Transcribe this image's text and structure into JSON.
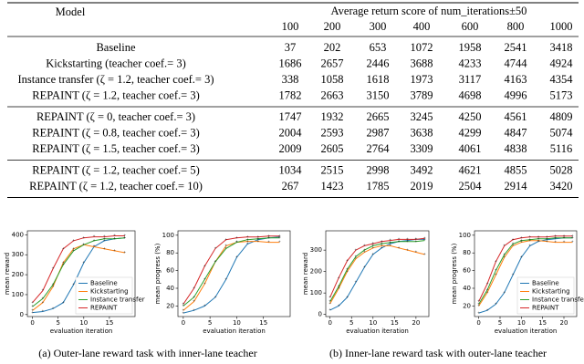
{
  "table": {
    "header": {
      "model": "Model",
      "group": "Average return score of num_iterations±50",
      "columns": [
        100,
        200,
        300,
        400,
        600,
        800,
        1000
      ]
    },
    "groups": [
      [
        {
          "model": "Baseline",
          "values": [
            37,
            202,
            653,
            1072,
            1958,
            2541,
            3418
          ]
        },
        {
          "model": "Kickstarting (teacher coef.= 3)",
          "values": [
            1686,
            2657,
            2446,
            3688,
            4233,
            4744,
            4924
          ]
        },
        {
          "model": "Instance transfer (ζ = 1.2, teacher coef.= 3)",
          "values": [
            338,
            1058,
            1618,
            1973,
            3117,
            4163,
            4354
          ]
        },
        {
          "model": "REPAINT (ζ = 1.2, teacher coef.= 3)",
          "values": [
            1782,
            2663,
            3150,
            3789,
            4698,
            4996,
            5173
          ]
        }
      ],
      [
        {
          "model": "REPAINT (ζ = 0, teacher coef.= 3)",
          "values": [
            1747,
            1932,
            2665,
            3245,
            4250,
            4561,
            4809
          ]
        },
        {
          "model": "REPAINT (ζ = 0.8, teacher coef.= 3)",
          "values": [
            2004,
            2593,
            2987,
            3638,
            4299,
            4847,
            5074
          ]
        },
        {
          "model": "REPAINT (ζ = 1.5, teacher coef.= 3)",
          "values": [
            2009,
            2605,
            2764,
            3309,
            4061,
            4838,
            5116
          ]
        }
      ],
      [
        {
          "model": "REPAINT (ζ = 1.2, teacher coef.= 5)",
          "values": [
            1034,
            2515,
            2998,
            3492,
            4621,
            4855,
            5028
          ]
        },
        {
          "model": "REPAINT (ζ = 1.2, teacher coef.= 10)",
          "values": [
            267,
            1423,
            1785,
            2019,
            2504,
            2914,
            3420
          ]
        }
      ]
    ]
  },
  "figures": [
    {
      "caption": "(a) Outer-lane reward task with inner-lane teacher",
      "charts": [
        {
          "type": "line",
          "xlabel": "evaluation iteration",
          "ylabel": "mean reward",
          "legend": "lower right",
          "x": [
            0,
            2,
            4,
            6,
            8,
            10,
            12,
            14,
            16,
            18
          ],
          "xlim": [
            -1,
            20
          ],
          "xticks": [
            0,
            5,
            10,
            15
          ],
          "ylim": [
            -10,
            420
          ],
          "yticks": [
            0,
            100,
            200,
            300,
            400
          ],
          "series": [
            {
              "name": "Baseline",
              "color": "#1f77b4",
              "values": [
                10,
                15,
                30,
                60,
                150,
                260,
                340,
                370,
                380,
                385
              ]
            },
            {
              "name": "Kickstarting",
              "color": "#ff7f0e",
              "values": [
                20,
                60,
                140,
                260,
                330,
                350,
                340,
                330,
                320,
                310
              ]
            },
            {
              "name": "Instance transfer",
              "color": "#2ca02c",
              "values": [
                40,
                80,
                150,
                250,
                320,
                350,
                370,
                380,
                380,
                385
              ]
            },
            {
              "name": "REPAINT",
              "color": "#d62728",
              "values": [
                60,
                120,
                230,
                330,
                370,
                385,
                390,
                390,
                395,
                395
              ]
            }
          ]
        },
        {
          "type": "line",
          "xlabel": "evaluation iteration",
          "ylabel": "mean progress (%)",
          "x": [
            0,
            2,
            4,
            6,
            8,
            10,
            12,
            14,
            16,
            18
          ],
          "xlim": [
            -1,
            20
          ],
          "xticks": [
            0,
            5,
            10,
            15
          ],
          "ylim": [
            8,
            105
          ],
          "yticks": [
            20,
            40,
            60,
            80,
            100
          ],
          "series": [
            {
              "name": "Baseline",
              "color": "#1f77b4",
              "values": [
                12,
                15,
                20,
                30,
                50,
                75,
                90,
                95,
                97,
                98
              ]
            },
            {
              "name": "Kickstarting",
              "color": "#ff7f0e",
              "values": [
                15,
                25,
                45,
                70,
                88,
                92,
                93,
                93,
                92,
                92
              ]
            },
            {
              "name": "Instance transfer",
              "color": "#2ca02c",
              "values": [
                20,
                30,
                50,
                70,
                85,
                92,
                95,
                96,
                97,
                97
              ]
            },
            {
              "name": "REPAINT",
              "color": "#d62728",
              "values": [
                22,
                40,
                65,
                85,
                95,
                97,
                98,
                98,
                99,
                99
              ]
            }
          ]
        }
      ]
    },
    {
      "caption": "(b) Inner-lane reward task with outer-lane teacher",
      "charts": [
        {
          "type": "line",
          "xlabel": "evaluation iteration",
          "ylabel": "mean reward",
          "x": [
            0,
            2,
            4,
            6,
            8,
            10,
            12,
            14,
            16,
            18,
            20,
            22
          ],
          "xlim": [
            -1,
            23
          ],
          "xticks": [
            0,
            5,
            10,
            15,
            20
          ],
          "ylim": [
            -10,
            390
          ],
          "yticks": [
            0,
            100,
            200,
            300
          ],
          "series": [
            {
              "name": "Baseline",
              "color": "#1f77b4",
              "values": [
                20,
                40,
                80,
                150,
                220,
                280,
                310,
                330,
                340,
                345,
                350,
                350
              ]
            },
            {
              "name": "Kickstarting",
              "color": "#ff7f0e",
              "values": [
                50,
                120,
                200,
                260,
                290,
                310,
                320,
                320,
                310,
                300,
                290,
                280
              ]
            },
            {
              "name": "Instance transfer",
              "color": "#2ca02c",
              "values": [
                60,
                130,
                210,
                270,
                300,
                320,
                330,
                335,
                340,
                340,
                340,
                345
              ]
            },
            {
              "name": "REPAINT",
              "color": "#d62728",
              "values": [
                80,
                170,
                250,
                300,
                320,
                330,
                340,
                345,
                350,
                350,
                350,
                355
              ]
            }
          ]
        },
        {
          "type": "line",
          "xlabel": "evaluation iteration",
          "ylabel": "mean progress (%)",
          "legend": "lower right",
          "x": [
            0,
            2,
            4,
            6,
            8,
            10,
            12,
            14,
            16,
            18,
            20,
            22
          ],
          "xlim": [
            -1,
            23
          ],
          "xticks": [
            0,
            5,
            10,
            15,
            20
          ],
          "ylim": [
            8,
            105
          ],
          "yticks": [
            20,
            40,
            60,
            80,
            100
          ],
          "series": [
            {
              "name": "Baseline",
              "color": "#1f77b4",
              "values": [
                12,
                15,
                22,
                35,
                55,
                75,
                88,
                93,
                95,
                96,
                97,
                97
              ]
            },
            {
              "name": "Kickstarting",
              "color": "#ff7f0e",
              "values": [
                20,
                35,
                55,
                75,
                88,
                92,
                94,
                94,
                93,
                92,
                92,
                92
              ]
            },
            {
              "name": "Instance transfer",
              "color": "#2ca02c",
              "values": [
                22,
                38,
                60,
                78,
                90,
                94,
                95,
                96,
                96,
                97,
                97,
                97
              ]
            },
            {
              "name": "REPAINT",
              "color": "#d62728",
              "values": [
                25,
                45,
                70,
                88,
                95,
                97,
                98,
                98,
                98,
                99,
                99,
                99
              ]
            }
          ]
        }
      ]
    }
  ]
}
